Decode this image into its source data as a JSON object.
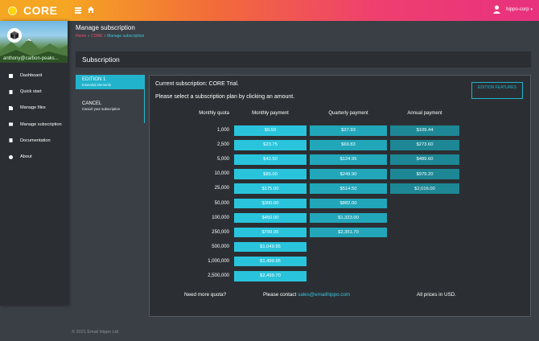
{
  "app": {
    "name": "CORE"
  },
  "user": {
    "name": "hippo-corp"
  },
  "sidebar": {
    "email": "anthony@carbon-peaks...",
    "items": [
      {
        "label": "Dashboard"
      },
      {
        "label": "Quick start"
      },
      {
        "label": "Manage files"
      },
      {
        "label": "Manage subscription"
      },
      {
        "label": "Documentation"
      },
      {
        "label": "About"
      }
    ]
  },
  "page": {
    "title": "Manage subscription",
    "breadcrumb": {
      "home": "Home",
      "core": "CORE",
      "current": "Manage subscription"
    }
  },
  "subscription": {
    "header": "Subscription",
    "tabs": [
      {
        "title": "EDITION 1",
        "subtitle": "Essential elements"
      },
      {
        "title": "CANCEL",
        "subtitle": "Cancel your subscription"
      }
    ],
    "current": "Current subscription: CORE Trial.",
    "instruction": "Please select a subscription plan by clicking an amount.",
    "features_button": "EDITION FEATURES",
    "columns": {
      "quota": "Monthly quota",
      "monthly": "Monthly payment",
      "quarterly": "Quarterly payment",
      "annual": "Annual payment"
    },
    "rows": [
      {
        "quota": "1,000",
        "monthly": "$9.50",
        "quarterly": "$27.93",
        "annual": "$109.44"
      },
      {
        "quota": "2,500",
        "monthly": "$23.75",
        "quarterly": "$69.83",
        "annual": "$273.60"
      },
      {
        "quota": "5,000",
        "monthly": "$42.50",
        "quarterly": "$124.95",
        "annual": "$489.60"
      },
      {
        "quota": "10,000",
        "monthly": "$85.00",
        "quarterly": "$249.90",
        "annual": "$979.20"
      },
      {
        "quota": "25,000",
        "monthly": "$175.00",
        "quarterly": "$514.50",
        "annual": "$2,016.00"
      },
      {
        "quota": "50,000",
        "monthly": "$300.00",
        "quarterly": "$882.00",
        "annual": ""
      },
      {
        "quota": "100,000",
        "monthly": "$450.00",
        "quarterly": "$1,323.00",
        "annual": ""
      },
      {
        "quota": "250,000",
        "monthly": "$799.95",
        "quarterly": "$2,351.70",
        "annual": ""
      },
      {
        "quota": "500,000",
        "monthly": "$1,049.95",
        "quarterly": "",
        "annual": ""
      },
      {
        "quota": "1,000,000",
        "monthly": "$1,499.95",
        "quarterly": "",
        "annual": ""
      },
      {
        "quota": "2,500,000",
        "monthly": "$2,499.70",
        "quarterly": "",
        "annual": ""
      }
    ],
    "footer": {
      "more_quota": "Need more quota?",
      "contact_prefix": "Please contact",
      "contact_email": "sales@emailhippo.com",
      "usd_note": "All prices in USD."
    }
  },
  "copyright": "© 2021 Email Hippo Ltd"
}
